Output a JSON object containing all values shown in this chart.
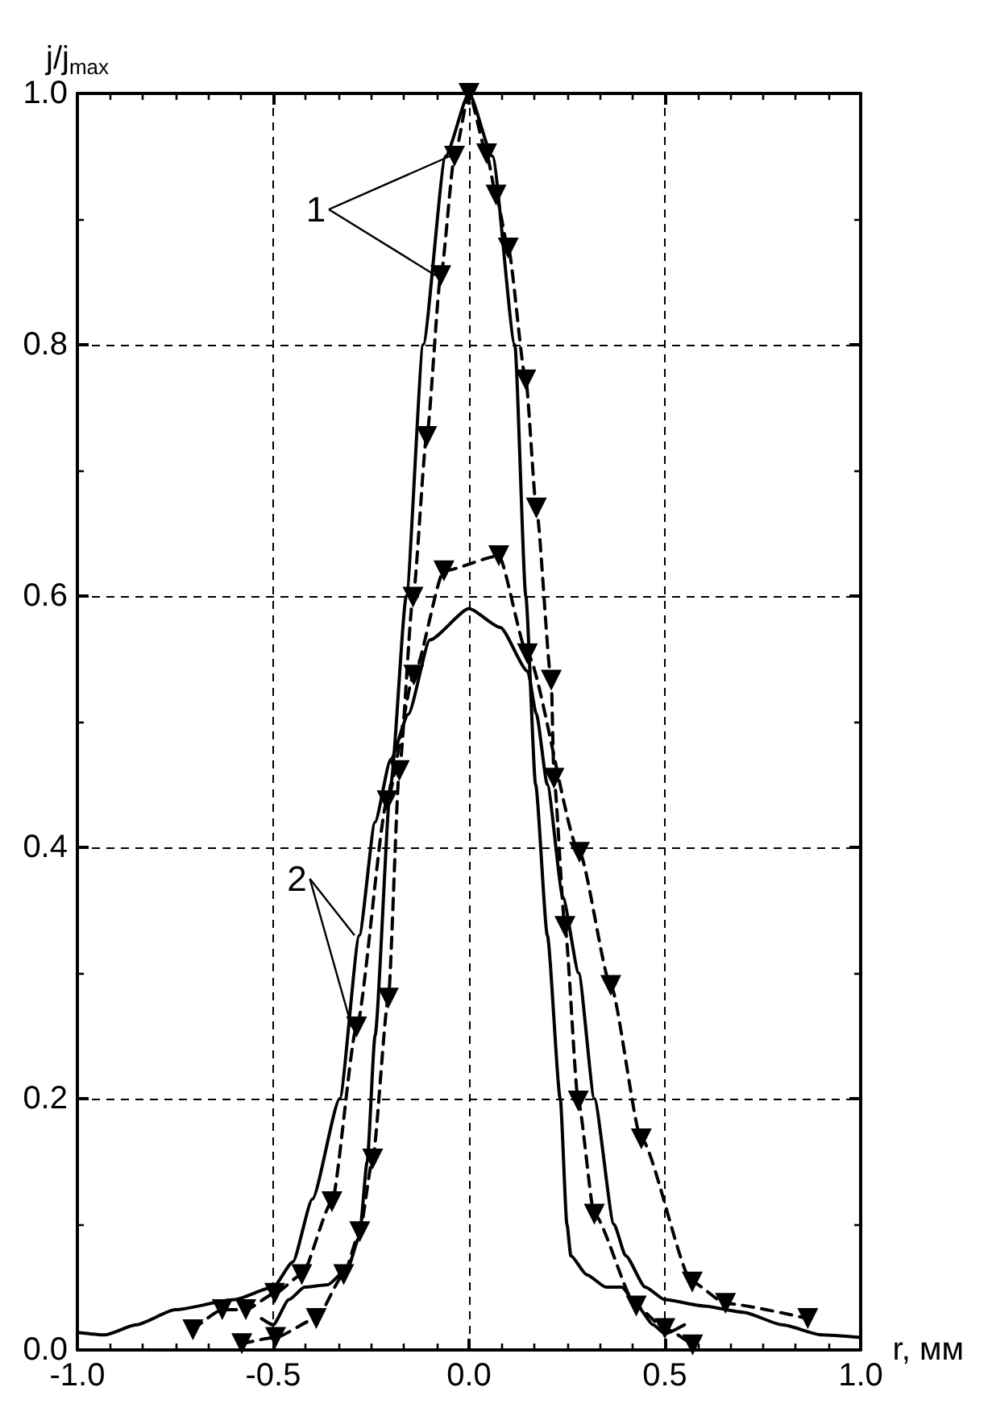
{
  "chart_data": {
    "type": "line",
    "xlabel": "r, мм",
    "ylabel": "j/j$_{max}$",
    "xlim": [
      -1.0,
      1.0
    ],
    "xticks": [
      {
        "value": -1.0,
        "label": "-1.0"
      },
      {
        "value": -0.5,
        "label": "-0.5"
      },
      {
        "value": 0,
        "label": "0.0"
      },
      {
        "value": 0.5,
        "label": "0.5"
      },
      {
        "value": 1.0,
        "label": "1.0"
      }
    ],
    "ylim": [
      0,
      1.0
    ],
    "yticks": [
      {
        "value": 0,
        "label": "0.0"
      },
      0.2,
      0.4,
      0.6,
      0.8,
      {
        "value": 1.0,
        "label": "1.0"
      }
    ],
    "grid": true,
    "legend": false,
    "series": [
      {
        "color": "#000000",
        "marker": "none",
        "line_style": "solid",
        "x": [
          -0.53,
          -0.5,
          -0.46,
          -0.42,
          -0.36,
          -0.31,
          -0.28,
          -0.26,
          -0.24,
          -0.2,
          -0.16,
          -0.117,
          -0.06,
          0,
          0.06,
          0.117,
          0.145,
          0.17,
          0.2,
          0.233,
          0.25,
          0.26,
          0.3,
          0.35,
          0.39,
          0.43,
          0.47,
          0.5,
          0.55
        ],
        "values": [
          0.025,
          0.02,
          0.04,
          0.05,
          0.052,
          0.065,
          0.09,
          0.15,
          0.25,
          0.45,
          0.6,
          0.8,
          0.95,
          1.0,
          0.95,
          0.8,
          0.6,
          0.45,
          0.33,
          0.2,
          0.1,
          0.075,
          0.06,
          0.05,
          0.05,
          0.035,
          0.02,
          0.013,
          0.02
        ]
      },
      {
        "color": "#000000",
        "marker": "triangle",
        "line_style": "dashed",
        "x": [
          -0.58,
          -0.494,
          -0.39,
          -0.32,
          -0.279,
          -0.246,
          -0.206,
          -0.178,
          -0.143,
          -0.108,
          -0.072,
          -0.037,
          0,
          0.045,
          0.069,
          0.1,
          0.145,
          0.172,
          0.21,
          0.217,
          0.245,
          0.279,
          0.32,
          0.427,
          0.5,
          0.571
        ],
        "values": [
          0.005,
          0.01,
          0.025,
          0.06,
          0.094,
          0.152,
          0.28,
          0.461,
          0.599,
          0.727,
          0.855,
          0.95,
          1.0,
          0.952,
          0.919,
          0.877,
          0.772,
          0.67,
          0.533,
          0.455,
          0.337,
          0.198,
          0.108,
          0.035,
          0.017,
          0.004
        ]
      },
      {
        "color": "#000000",
        "marker": "none",
        "line_style": "solid",
        "x": [
          -1.0,
          -0.93,
          -0.85,
          -0.75,
          -0.6,
          -0.5,
          -0.45,
          -0.4,
          -0.33,
          -0.28,
          -0.24,
          -0.2,
          -0.155,
          -0.1,
          0,
          0.08,
          0.15,
          0.172,
          0.2,
          0.24,
          0.28,
          0.32,
          0.37,
          0.4,
          0.45,
          0.5,
          0.6,
          0.7,
          0.8,
          0.9,
          1.0
        ],
        "values": [
          0.014,
          0.012,
          0.02,
          0.032,
          0.04,
          0.05,
          0.07,
          0.12,
          0.2,
          0.33,
          0.42,
          0.47,
          0.506,
          0.565,
          0.59,
          0.575,
          0.54,
          0.506,
          0.45,
          0.36,
          0.3,
          0.2,
          0.1,
          0.075,
          0.05,
          0.04,
          0.035,
          0.03,
          0.02,
          0.012,
          0.01
        ]
      },
      {
        "color": "#000000",
        "marker": "triangle",
        "line_style": "dashed",
        "x": [
          -0.705,
          -0.63,
          -0.57,
          -0.496,
          -0.427,
          -0.35,
          -0.287,
          -0.209,
          -0.141,
          -0.064,
          0.076,
          0.149,
          0.282,
          0.362,
          0.44,
          0.57,
          0.655,
          0.865
        ],
        "values": [
          0.016,
          0.032,
          0.032,
          0.045,
          0.06,
          0.118,
          0.257,
          0.437,
          0.537,
          0.62,
          0.632,
          0.554,
          0.396,
          0.29,
          0.168,
          0.054,
          0.037,
          0.025
        ]
      }
    ],
    "annotations": [
      {
        "text": "1",
        "x": -0.037,
        "y": 0.95
      },
      {
        "text": "2",
        "x": -0.287,
        "y": 0.257
      }
    ]
  }
}
